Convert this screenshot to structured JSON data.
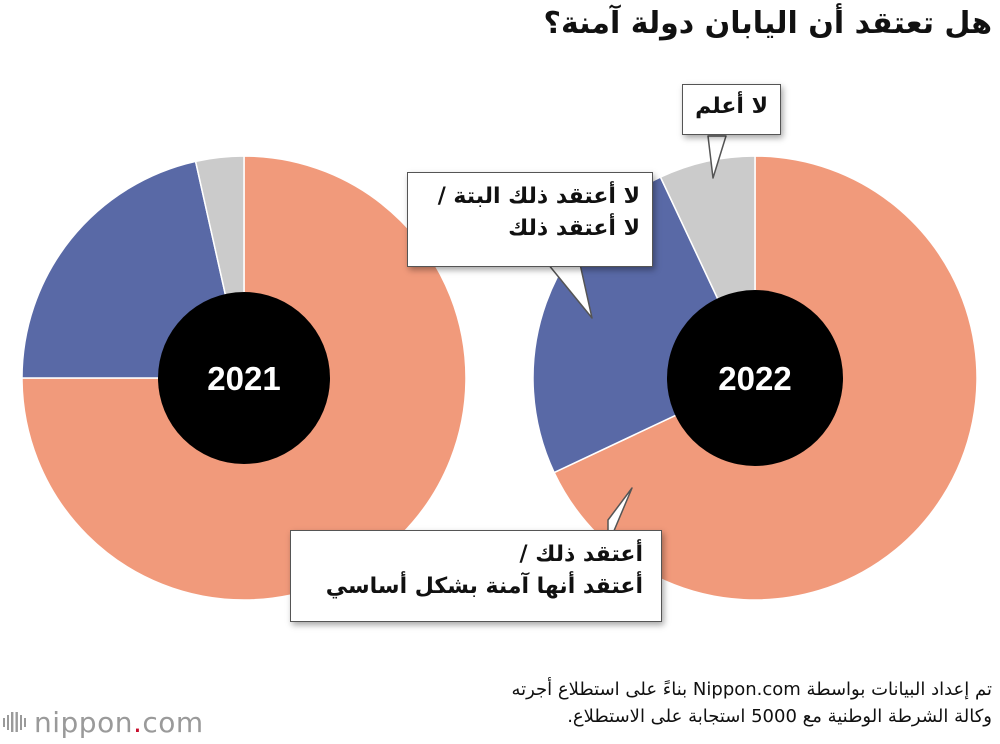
{
  "title": "هل تعتقد أن اليابان دولة آمنة؟",
  "chart_data": {
    "type": "pie",
    "title": "هل تعتقد أن اليابان دولة آمنة؟",
    "categories": [
      "أعتقد ذلك / أعتقد أنها آمنة بشكل أساسي",
      "لا أعتقد ذلك البتة / لا أعتقد ذلك",
      "لا أعلم"
    ],
    "series": [
      {
        "name": "2021",
        "values": [
          75.0,
          21.5,
          3.5
        ]
      },
      {
        "name": "2022",
        "values": [
          68.0,
          25.0,
          7.0
        ]
      }
    ],
    "colors": [
      "#f19a7b",
      "#5969a6",
      "#cbcbcb"
    ],
    "center_color": "#000000"
  },
  "callouts": {
    "dont_know": "لا أعلم",
    "dont_think_line1": "لا أعتقد ذلك البتة /",
    "dont_think_line2": "لا أعتقد ذلك",
    "think_line1": "أعتقد ذلك /",
    "think_line2": "أعتقد أنها آمنة بشكل أساسي"
  },
  "source": {
    "line1": "تم إعداد البيانات بواسطة Nippon.com بناءً على استطلاع أجرته",
    "line2": "وكالة الشرطة الوطنية مع 5000 استجابة على الاستطلاع."
  },
  "logo": {
    "prefix": "nippon",
    "dot": ".",
    "suffix": "com",
    "icon": "nippon-logo-bars-icon"
  }
}
